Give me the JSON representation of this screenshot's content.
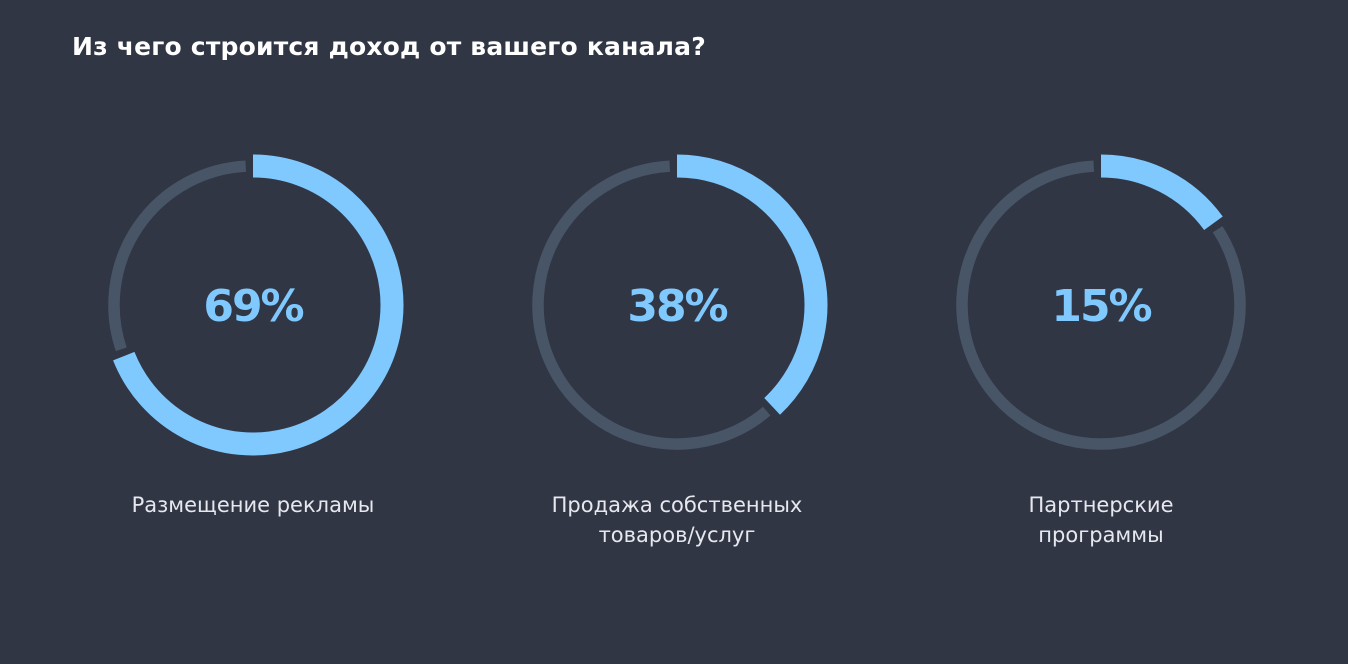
{
  "title": "Из чего строится доход от вашего канала?",
  "colors": {
    "background": "#313645",
    "track": "#475566",
    "accent": "#7fc9ff"
  },
  "chart_data": {
    "type": "pie",
    "title": "Из чего строится доход от вашего канала?",
    "items": [
      {
        "label": "Размещение рекламы",
        "value": 69,
        "value_label": "69%"
      },
      {
        "label": "Продажа собственных\nтоваров/услуг",
        "value": 38,
        "value_label": "38%"
      },
      {
        "label": "Партнерские\nпрограммы",
        "value": 15,
        "value_label": "15%"
      }
    ]
  }
}
